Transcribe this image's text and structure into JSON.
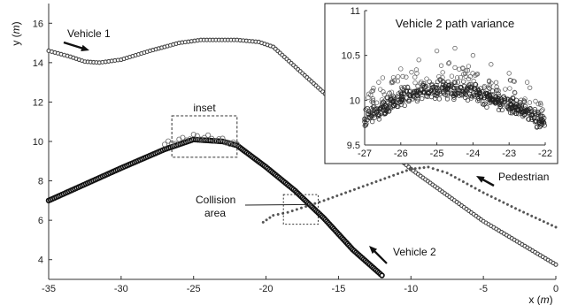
{
  "chart_data": [
    {
      "type": "scatter",
      "xlabel_text": "x (",
      "xlabel_unit": "m",
      "xlabel_close": ")",
      "ylabel_text": "y (",
      "ylabel_unit": "m",
      "ylabel_close": ")",
      "xlim": [
        -35,
        0
      ],
      "ylim": [
        3,
        17
      ],
      "x_ticks": [
        -35,
        -30,
        -25,
        -20,
        -15,
        -10,
        -5,
        0
      ],
      "y_ticks": [
        4,
        6,
        8,
        10,
        12,
        14,
        16
      ],
      "series": [
        {
          "name": "Vehicle 1",
          "marker": "circle-thin",
          "points": [
            [
              -35,
              14.6
            ],
            [
              -33.5,
              14.3
            ],
            [
              -32.5,
              14.05
            ],
            [
              -31.5,
              14.0
            ],
            [
              -30,
              14.15
            ],
            [
              -28,
              14.6
            ],
            [
              -26,
              15.0
            ],
            [
              -24.5,
              15.15
            ],
            [
              -22,
              15.15
            ],
            [
              -20.5,
              15.05
            ],
            [
              -19.5,
              14.8
            ],
            [
              -15,
              11.8
            ],
            [
              -10,
              8.6
            ],
            [
              -5,
              5.95
            ],
            [
              0,
              3.75
            ]
          ]
        },
        {
          "name": "Vehicle 2",
          "marker": "circle-bold",
          "points": [
            [
              -35,
              7.0
            ],
            [
              -30,
              8.65
            ],
            [
              -27,
              9.6
            ],
            [
              -25,
              10.1
            ],
            [
              -23,
              10.0
            ],
            [
              -22,
              9.8
            ],
            [
              -20,
              8.7
            ],
            [
              -18,
              7.5
            ],
            [
              -16,
              6.1
            ],
            [
              -14,
              4.5
            ],
            [
              -12,
              3.2
            ]
          ]
        },
        {
          "name": "Pedestrian",
          "marker": "dot",
          "points": [
            [
              -20.2,
              5.9
            ],
            [
              -19.5,
              6.25
            ],
            [
              -18.5,
              6.4
            ],
            [
              -16,
              7.0
            ],
            [
              -13,
              7.8
            ],
            [
              -10,
              8.6
            ],
            [
              -8.8,
              8.7
            ],
            [
              -7.5,
              8.4
            ],
            [
              -5,
              7.4
            ],
            [
              -2.5,
              6.5
            ],
            [
              0,
              5.65
            ]
          ]
        },
        {
          "name": "Vehicle 2 path variance",
          "marker": "circle-hollow",
          "points": [
            [
              -27,
              9.85
            ],
            [
              -26,
              10.05
            ],
            [
              -25.5,
              10.15
            ],
            [
              -25,
              10.25
            ],
            [
              -24,
              10.2
            ],
            [
              -23,
              10.05
            ],
            [
              -22.5,
              9.95
            ],
            [
              -22,
              9.8
            ]
          ]
        }
      ],
      "annotations": {
        "vehicle1": "Vehicle 1",
        "vehicle2": "Vehicle 2",
        "pedestrian": "Pedestrian",
        "collision_line1": "Collision",
        "collision_line2": "area",
        "inset_box": "inset"
      },
      "grid": false
    },
    {
      "type": "scatter",
      "title": "Vehicle 2 path variance",
      "xlim": [
        -27,
        -22
      ],
      "ylim": [
        9.5,
        11
      ],
      "x_ticks": [
        -27,
        -26,
        -25,
        -24,
        -23,
        -22
      ],
      "y_ticks": [
        9.5,
        10,
        10.5,
        11
      ],
      "y_tick_labels": [
        "9.5",
        "10",
        "10.5",
        "11"
      ],
      "series": [
        {
          "name": "Vehicle 2 path variance",
          "marker": "circle-hollow",
          "center_curve": [
            [
              -27,
              9.8
            ],
            [
              -26.5,
              9.93
            ],
            [
              -26,
              10.02
            ],
            [
              -25.5,
              10.08
            ],
            [
              -25,
              10.12
            ],
            [
              -24.5,
              10.12
            ],
            [
              -24,
              10.08
            ],
            [
              -23.5,
              10.02
            ],
            [
              -23,
              9.95
            ],
            [
              -22.5,
              9.86
            ],
            [
              -22,
              9.76
            ]
          ],
          "outliers": [
            [
              -25,
              10.55
            ],
            [
              -25.5,
              10.45
            ],
            [
              -24.5,
              10.58
            ],
            [
              -24,
              10.5
            ],
            [
              -23.5,
              10.4
            ],
            [
              -26,
              10.35
            ],
            [
              -23,
              10.3
            ],
            [
              -22.5,
              10.2
            ],
            [
              -26.5,
              10.25
            ],
            [
              -26.8,
              10.1
            ]
          ]
        }
      ],
      "grid": false
    }
  ]
}
